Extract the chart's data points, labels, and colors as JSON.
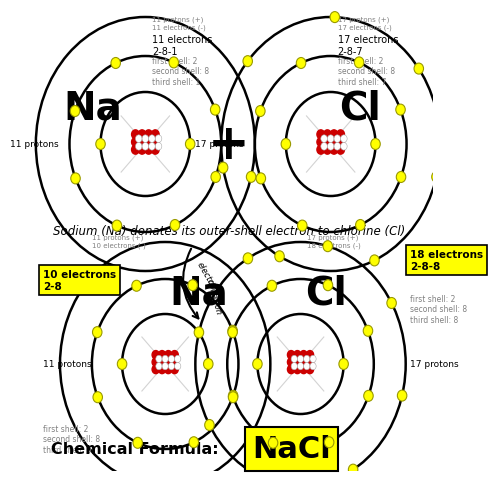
{
  "bg_color": "#ffffff",
  "annotation_text": "Sodium (Na) donates its outer-shell electron to chlorine (Cl)",
  "chemical_formula_label": "Chemical Formula:",
  "chemical_formula": "NaCl",
  "na_label": "Na",
  "cl_label": "Cl",
  "na2_label": "Na",
  "cl2_label": "Cl",
  "na_info_top": "11 protons (+)\n11 electrons (-)",
  "cl_info_top": "17 protons (+)\n17 electrons (-)",
  "na2_info_top": "11 protons (+)\n10 electrons (-)",
  "cl2_info_top": "17 protons (+)\n18 electrons (-)",
  "na_electrons_label": "11 electrons\n2-8-1",
  "na_shells_label": "first shell: 2\nsecond shell: 8\nthird shell: 1",
  "cl_electrons_label": "17 electrons\n2-8-7",
  "cl_shells_label": "first shell: 2\nsecond shell: 8\nthird shell: 7",
  "na_protons_label": "11 protons",
  "cl_protons_label": "17 protons",
  "na2_protons_label": "11 protons",
  "cl2_protons_label": "17 protons",
  "na2_electrons_box": "10 electrons\n2-8",
  "cl2_electrons_box": "18 electrons\n2-8-8",
  "na2_shells_label": "first shell: 2\nsecond shell: 8\nthird shell: 0",
  "cl2_shells_label": "first shell: 2\nsecond shell: 8\nthird shell: 8",
  "electron_donation_label1": "electron",
  "electron_donation_label2": "donation",
  "nucleus_red_color": "#cc0000",
  "electron_color": "#ffff00",
  "electron_edge_color": "#999900",
  "shell_color": "#000000",
  "box_yellow": "#ffff00",
  "plus_sign": "+",
  "s1": 0.065,
  "s2": 0.108,
  "s3": 0.155
}
